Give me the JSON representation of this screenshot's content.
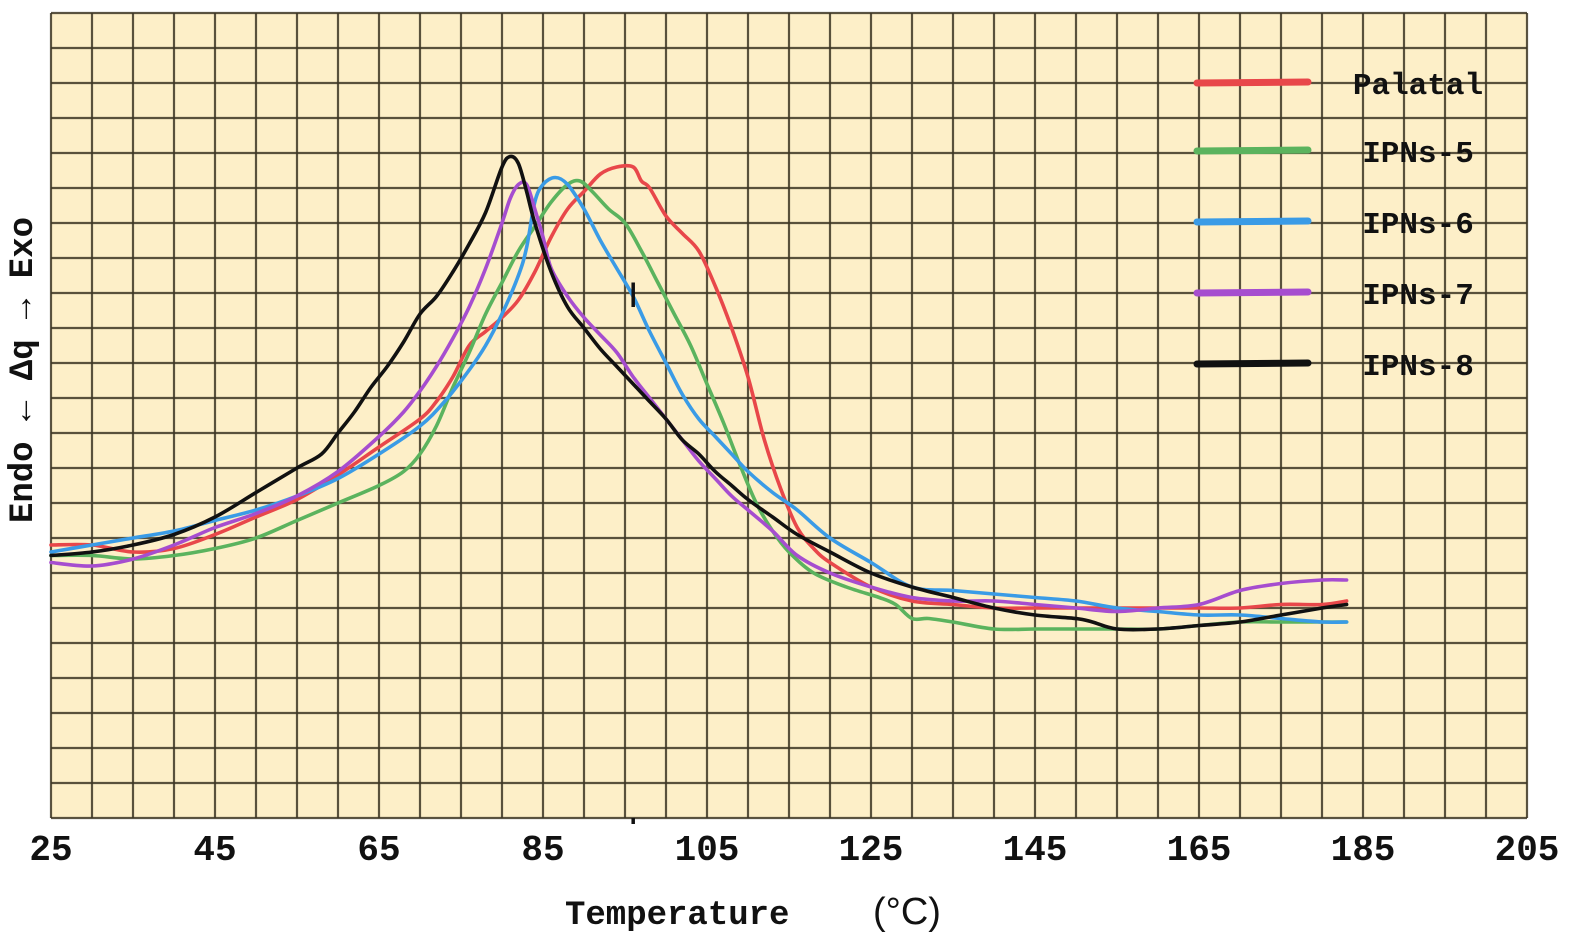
{
  "chart_data": {
    "type": "line",
    "title": "",
    "xlabel": "Temperature",
    "xlabel_unit": "(°C)",
    "ylabel": "Endo ← Δq → Exo",
    "xlim": [
      25,
      205
    ],
    "ylim": [
      0,
      23
    ],
    "x_ticks": [
      25,
      45,
      65,
      85,
      105,
      125,
      145,
      165,
      185,
      205
    ],
    "x_tick_labels": [
      "25",
      "45",
      "65",
      "85",
      "105",
      "125",
      "145",
      "165",
      "185",
      "205"
    ],
    "x_grid_step": 5,
    "y_grid_step": 1,
    "grid": true,
    "background_color": "#fdefc8",
    "legend_position": "top-right",
    "series": [
      {
        "name": "Palatal",
        "color": "#e8474a",
        "points": [
          [
            25,
            7.8
          ],
          [
            30,
            7.8
          ],
          [
            35,
            7.6
          ],
          [
            40,
            7.7
          ],
          [
            45,
            8.1
          ],
          [
            50,
            8.6
          ],
          [
            55,
            9.1
          ],
          [
            60,
            9.8
          ],
          [
            65,
            10.6
          ],
          [
            70,
            11.4
          ],
          [
            72,
            11.9
          ],
          [
            74,
            12.6
          ],
          [
            76,
            13.5
          ],
          [
            78,
            13.9
          ],
          [
            80,
            14.3
          ],
          [
            82,
            14.8
          ],
          [
            84,
            15.6
          ],
          [
            86,
            16.6
          ],
          [
            88,
            17.4
          ],
          [
            90,
            17.9
          ],
          [
            92,
            18.4
          ],
          [
            94,
            18.6
          ],
          [
            96,
            18.6
          ],
          [
            97,
            18.2
          ],
          [
            98,
            18.0
          ],
          [
            100,
            17.2
          ],
          [
            102,
            16.7
          ],
          [
            104,
            16.2
          ],
          [
            106,
            15.2
          ],
          [
            108,
            14.0
          ],
          [
            110,
            12.6
          ],
          [
            112,
            10.8
          ],
          [
            114,
            9.4
          ],
          [
            116,
            8.3
          ],
          [
            118,
            7.7
          ],
          [
            120,
            7.3
          ],
          [
            125,
            6.6
          ],
          [
            130,
            6.2
          ],
          [
            135,
            6.1
          ],
          [
            140,
            6.0
          ],
          [
            145,
            6.0
          ],
          [
            150,
            6.0
          ],
          [
            155,
            6.0
          ],
          [
            160,
            6.0
          ],
          [
            165,
            6.0
          ],
          [
            170,
            6.0
          ],
          [
            175,
            6.1
          ],
          [
            180,
            6.1
          ],
          [
            183,
            6.2
          ]
        ]
      },
      {
        "name": "IPNs-5",
        "color": "#5bb35e",
        "points": [
          [
            25,
            7.5
          ],
          [
            30,
            7.5
          ],
          [
            35,
            7.4
          ],
          [
            40,
            7.5
          ],
          [
            45,
            7.7
          ],
          [
            50,
            8.0
          ],
          [
            55,
            8.5
          ],
          [
            60,
            9.0
          ],
          [
            65,
            9.5
          ],
          [
            68,
            9.9
          ],
          [
            70,
            10.4
          ],
          [
            72,
            11.2
          ],
          [
            74,
            12.3
          ],
          [
            76,
            13.3
          ],
          [
            78,
            14.4
          ],
          [
            80,
            15.3
          ],
          [
            82,
            16.2
          ],
          [
            84,
            16.9
          ],
          [
            86,
            17.6
          ],
          [
            88,
            18.1
          ],
          [
            89.5,
            18.2
          ],
          [
            91,
            17.9
          ],
          [
            93,
            17.4
          ],
          [
            95,
            17.0
          ],
          [
            97,
            16.2
          ],
          [
            99,
            15.3
          ],
          [
            101,
            14.4
          ],
          [
            103,
            13.5
          ],
          [
            105,
            12.4
          ],
          [
            107,
            11.3
          ],
          [
            109,
            10.1
          ],
          [
            111,
            9.0
          ],
          [
            113,
            8.2
          ],
          [
            115,
            7.6
          ],
          [
            118,
            7.0
          ],
          [
            122,
            6.6
          ],
          [
            126,
            6.3
          ],
          [
            128,
            6.1
          ],
          [
            130,
            5.7
          ],
          [
            132,
            5.7
          ],
          [
            135,
            5.6
          ],
          [
            140,
            5.4
          ],
          [
            145,
            5.4
          ],
          [
            150,
            5.4
          ],
          [
            155,
            5.4
          ],
          [
            160,
            5.4
          ],
          [
            165,
            5.5
          ],
          [
            170,
            5.6
          ],
          [
            175,
            5.6
          ],
          [
            180,
            5.6
          ],
          [
            183,
            5.6
          ]
        ]
      },
      {
        "name": "IPNs-6",
        "color": "#3a9be6",
        "points": [
          [
            25,
            7.6
          ],
          [
            30,
            7.8
          ],
          [
            35,
            8.0
          ],
          [
            40,
            8.2
          ],
          [
            45,
            8.5
          ],
          [
            50,
            8.8
          ],
          [
            55,
            9.2
          ],
          [
            60,
            9.7
          ],
          [
            65,
            10.4
          ],
          [
            70,
            11.2
          ],
          [
            73,
            11.9
          ],
          [
            76,
            12.8
          ],
          [
            78,
            13.5
          ],
          [
            80,
            14.4
          ],
          [
            82,
            15.5
          ],
          [
            83,
            16.3
          ],
          [
            84,
            17.6
          ],
          [
            85,
            18.1
          ],
          [
            86.5,
            18.3
          ],
          [
            88,
            18.1
          ],
          [
            90,
            17.4
          ],
          [
            92,
            16.5
          ],
          [
            94,
            15.7
          ],
          [
            96,
            14.9
          ],
          [
            98,
            13.9
          ],
          [
            100,
            13.0
          ],
          [
            102,
            12.1
          ],
          [
            104,
            11.4
          ],
          [
            106,
            10.9
          ],
          [
            108,
            10.4
          ],
          [
            110,
            9.9
          ],
          [
            113,
            9.3
          ],
          [
            116,
            8.8
          ],
          [
            120,
            8.0
          ],
          [
            125,
            7.3
          ],
          [
            130,
            6.6
          ],
          [
            135,
            6.5
          ],
          [
            140,
            6.4
          ],
          [
            145,
            6.3
          ],
          [
            150,
            6.2
          ],
          [
            155,
            6.0
          ],
          [
            160,
            5.9
          ],
          [
            165,
            5.8
          ],
          [
            170,
            5.8
          ],
          [
            175,
            5.7
          ],
          [
            180,
            5.6
          ],
          [
            183,
            5.6
          ]
        ]
      },
      {
        "name": "IPNs-7",
        "color": "#a64dcf",
        "points": [
          [
            25,
            7.3
          ],
          [
            30,
            7.2
          ],
          [
            35,
            7.4
          ],
          [
            40,
            7.8
          ],
          [
            45,
            8.3
          ],
          [
            50,
            8.7
          ],
          [
            55,
            9.2
          ],
          [
            60,
            9.9
          ],
          [
            65,
            10.9
          ],
          [
            68,
            11.6
          ],
          [
            70,
            12.2
          ],
          [
            72,
            12.9
          ],
          [
            74,
            13.7
          ],
          [
            76,
            14.6
          ],
          [
            78,
            15.7
          ],
          [
            80,
            17.0
          ],
          [
            81,
            17.7
          ],
          [
            82,
            18.1
          ],
          [
            83,
            18.1
          ],
          [
            84,
            17.4
          ],
          [
            85,
            16.6
          ],
          [
            86,
            15.7
          ],
          [
            88,
            14.9
          ],
          [
            90,
            14.3
          ],
          [
            92,
            13.8
          ],
          [
            94,
            13.3
          ],
          [
            96,
            12.6
          ],
          [
            98,
            12.0
          ],
          [
            100,
            11.4
          ],
          [
            102,
            10.8
          ],
          [
            104,
            10.2
          ],
          [
            106,
            9.7
          ],
          [
            108,
            9.2
          ],
          [
            110,
            8.8
          ],
          [
            113,
            8.2
          ],
          [
            116,
            7.5
          ],
          [
            120,
            7.0
          ],
          [
            125,
            6.6
          ],
          [
            130,
            6.3
          ],
          [
            135,
            6.2
          ],
          [
            140,
            6.2
          ],
          [
            145,
            6.1
          ],
          [
            150,
            6.0
          ],
          [
            155,
            5.9
          ],
          [
            160,
            6.0
          ],
          [
            165,
            6.1
          ],
          [
            170,
            6.5
          ],
          [
            175,
            6.7
          ],
          [
            180,
            6.8
          ],
          [
            183,
            6.8
          ]
        ]
      },
      {
        "name": "IPNs-8",
        "color": "#111111",
        "points": [
          [
            25,
            7.5
          ],
          [
            30,
            7.6
          ],
          [
            35,
            7.8
          ],
          [
            40,
            8.1
          ],
          [
            45,
            8.6
          ],
          [
            50,
            9.3
          ],
          [
            55,
            10.0
          ],
          [
            58,
            10.4
          ],
          [
            60,
            11.0
          ],
          [
            62,
            11.6
          ],
          [
            64,
            12.3
          ],
          [
            66,
            12.9
          ],
          [
            68,
            13.6
          ],
          [
            70,
            14.4
          ],
          [
            72,
            14.9
          ],
          [
            74,
            15.6
          ],
          [
            76,
            16.4
          ],
          [
            78,
            17.3
          ],
          [
            80,
            18.6
          ],
          [
            81,
            18.9
          ],
          [
            82,
            18.7
          ],
          [
            83,
            17.9
          ],
          [
            84,
            17.0
          ],
          [
            86,
            15.6
          ],
          [
            88,
            14.6
          ],
          [
            90,
            14.0
          ],
          [
            92,
            13.4
          ],
          [
            94,
            12.9
          ],
          [
            96,
            12.4
          ],
          [
            98,
            11.9
          ],
          [
            100,
            11.4
          ],
          [
            102,
            10.8
          ],
          [
            104,
            10.4
          ],
          [
            106,
            9.9
          ],
          [
            108,
            9.5
          ],
          [
            110,
            9.1
          ],
          [
            113,
            8.6
          ],
          [
            116,
            8.1
          ],
          [
            120,
            7.6
          ],
          [
            125,
            7.0
          ],
          [
            130,
            6.6
          ],
          [
            135,
            6.3
          ],
          [
            140,
            6.0
          ],
          [
            145,
            5.8
          ],
          [
            150,
            5.7
          ],
          [
            152,
            5.6
          ],
          [
            155,
            5.4
          ],
          [
            160,
            5.4
          ],
          [
            165,
            5.5
          ],
          [
            170,
            5.6
          ],
          [
            175,
            5.8
          ],
          [
            180,
            6.0
          ],
          [
            183,
            6.1
          ]
        ]
      }
    ],
    "annotations": [
      {
        "type": "tick-mark",
        "x": 96
      }
    ]
  }
}
